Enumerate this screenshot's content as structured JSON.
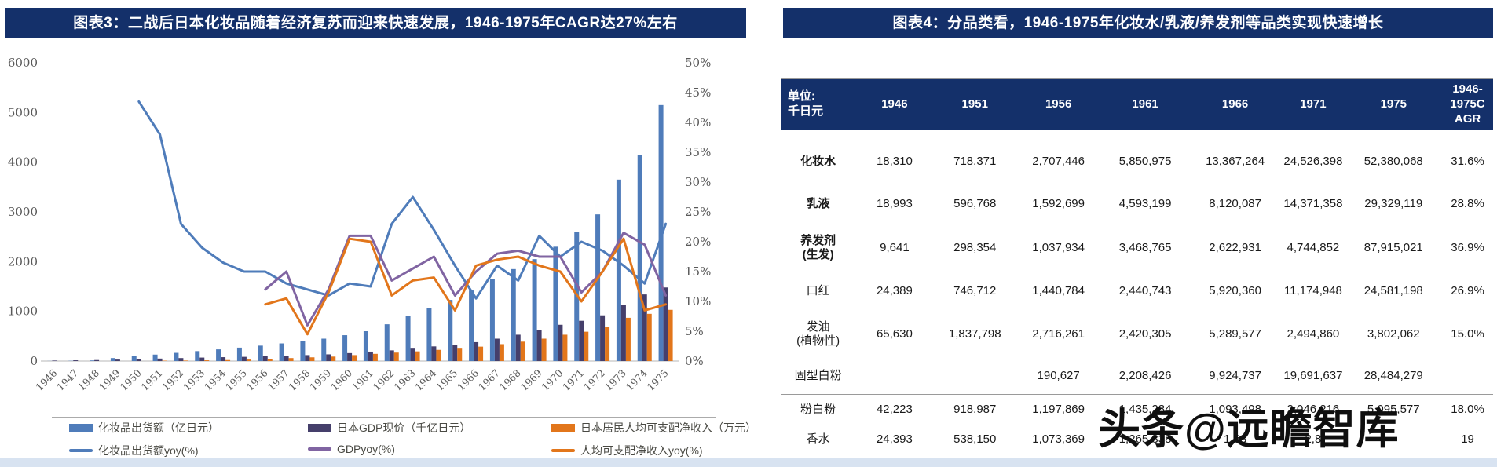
{
  "page": {
    "watermark": "头条@远瞻智库"
  },
  "figure3": {
    "title": "图表3：二战后日本化妆品随着经济复苏而迎来快速发展，1946-1975年CAGR达27%左右",
    "title_bg": "#14306a"
  },
  "figure4": {
    "title": "图表4：分品类看，1946-1975年化妆水/乳液/养发剂等品类实现快速增长",
    "title_bg": "#14306a"
  },
  "chart_data": [
    {
      "type": "bar",
      "subtype": "combo-bar-line",
      "title": "二战后日本化妆品随着经济复苏而迎来快速发展",
      "x": [
        "1946",
        "1947",
        "1948",
        "1949",
        "1950",
        "1951",
        "1952",
        "1953",
        "1954",
        "1955",
        "1956",
        "1957",
        "1958",
        "1959",
        "1960",
        "1961",
        "1962",
        "1963",
        "1964",
        "1965",
        "1966",
        "1967",
        "1968",
        "1969",
        "1970",
        "1971",
        "1972",
        "1973",
        "1974",
        "1975"
      ],
      "left_axis": {
        "min": 0,
        "max": 6000,
        "ticks": [
          0,
          1000,
          2000,
          3000,
          4000,
          5000,
          6000
        ]
      },
      "right_axis": {
        "min": 0,
        "max": 50,
        "ticks": [
          "0%",
          "5%",
          "10%",
          "15%",
          "20%",
          "25%",
          "30%",
          "35%",
          "40%",
          "45%",
          "50%"
        ]
      },
      "grid": false,
      "legend_position": "bottom",
      "bar_series": [
        {
          "name": "化妆品出货额（亿日元）",
          "color": "#4f7cba",
          "axis": "left",
          "values": [
            2,
            5,
            12,
            60,
            95,
            130,
            165,
            200,
            235,
            270,
            310,
            355,
            400,
            450,
            520,
            600,
            740,
            910,
            1060,
            1230,
            1420,
            1650,
            1850,
            2050,
            2300,
            2600,
            2950,
            3650,
            4150,
            5150
          ]
        },
        {
          "name": "日本GDP现价（千亿日元）",
          "color": "#453f6b",
          "axis": "left",
          "values": [
            10,
            15,
            20,
            30,
            40,
            50,
            60,
            70,
            78,
            85,
            95,
            110,
            120,
            135,
            160,
            190,
            215,
            250,
            295,
            330,
            380,
            450,
            530,
            620,
            730,
            810,
            920,
            1130,
            1340,
            1480
          ]
        },
        {
          "name": "日本居民人均可支配净收入（万元）",
          "color": "#e2761b",
          "axis": "left",
          "values": [
            null,
            null,
            null,
            null,
            null,
            8,
            10,
            15,
            20,
            30,
            45,
            60,
            75,
            90,
            120,
            145,
            170,
            195,
            225,
            250,
            290,
            340,
            390,
            450,
            530,
            590,
            690,
            870,
            950,
            1030
          ]
        }
      ],
      "line_series": [
        {
          "name": "化妆品出货额yoy(%)",
          "color": "#4f7cba",
          "axis": "right",
          "values": [
            null,
            null,
            null,
            null,
            43.5,
            38,
            23,
            19,
            16.5,
            15,
            15,
            13,
            12,
            11,
            13,
            12.5,
            23,
            27.5,
            22,
            16,
            10.5,
            16,
            13.5,
            21,
            17.5,
            20,
            18.5,
            16,
            13,
            23
          ]
        },
        {
          "name": "GDPyoy(%)",
          "color": "#8064a2",
          "axis": "right",
          "values": [
            null,
            null,
            null,
            null,
            null,
            null,
            null,
            null,
            null,
            null,
            12,
            15,
            6,
            12,
            21,
            21,
            13.5,
            15.5,
            17.5,
            11,
            15,
            18,
            18.5,
            17.5,
            17.5,
            11.5,
            15,
            21.5,
            19.5,
            11
          ]
        },
        {
          "name": "人均可支配净收入yoy(%)",
          "color": "#e2761b",
          "axis": "right",
          "values": [
            null,
            null,
            null,
            null,
            null,
            null,
            null,
            null,
            null,
            null,
            9.5,
            10.5,
            4.5,
            11.5,
            20.5,
            20,
            11,
            13.5,
            14,
            8.5,
            16,
            17,
            17.5,
            16,
            15,
            10,
            15,
            20.5,
            8.5,
            9.5
          ]
        }
      ]
    },
    {
      "type": "table",
      "title": "分品类看，1946-1975年化妆水/乳液/养发剂等品类实现快速增长",
      "columns": [
        "单位:\n千日元",
        "1946",
        "1951",
        "1956",
        "1961",
        "1966",
        "1971",
        "1975",
        "1946-1975C AGR"
      ],
      "rows": [
        {
          "label": "化妆水",
          "bold": true,
          "values": [
            "18,310",
            "718,371",
            "2,707,446",
            "5,850,975",
            "13,367,264",
            "24,526,398",
            "52,380,068",
            "31.6%"
          ]
        },
        {
          "label": "乳液",
          "bold": true,
          "values": [
            "18,993",
            "596,768",
            "1,592,699",
            "4,593,199",
            "8,120,087",
            "14,371,358",
            "29,329,119",
            "28.8%"
          ]
        },
        {
          "label": "养发剂\n(生发)",
          "bold": true,
          "values": [
            "9,641",
            "298,354",
            "1,037,934",
            "3,468,765",
            "2,622,931",
            "4,744,852",
            "87,915,021",
            "36.9%"
          ]
        },
        {
          "label": "口红",
          "bold": false,
          "values": [
            "24,389",
            "746,712",
            "1,440,784",
            "2,440,743",
            "5,920,360",
            "11,174,948",
            "24,581,198",
            "26.9%"
          ]
        },
        {
          "label": "发油\n(植物性)",
          "bold": false,
          "values": [
            "65,630",
            "1,837,798",
            "2,716,261",
            "2,420,305",
            "5,289,577",
            "2,494,860",
            "3,802,062",
            "15.0%"
          ]
        },
        {
          "label": "固型白粉",
          "bold": false,
          "values": [
            "",
            "",
            "190,627",
            "2,208,426",
            "9,924,737",
            "19,691,637",
            "28,484,279",
            ""
          ]
        },
        {
          "label": "粉白粉",
          "bold": false,
          "values": [
            "42,223",
            "918,987",
            "1,197,869",
            "1,435,284",
            "1,093,498",
            "2,046,216",
            "5,095,577",
            "18.0%"
          ]
        },
        {
          "label": "香水",
          "bold": false,
          "values": [
            "24,393",
            "538,150",
            "1,073,369",
            "1,265,338",
            "1,63",
            "2,8",
            "",
            "19"
          ]
        }
      ]
    }
  ]
}
